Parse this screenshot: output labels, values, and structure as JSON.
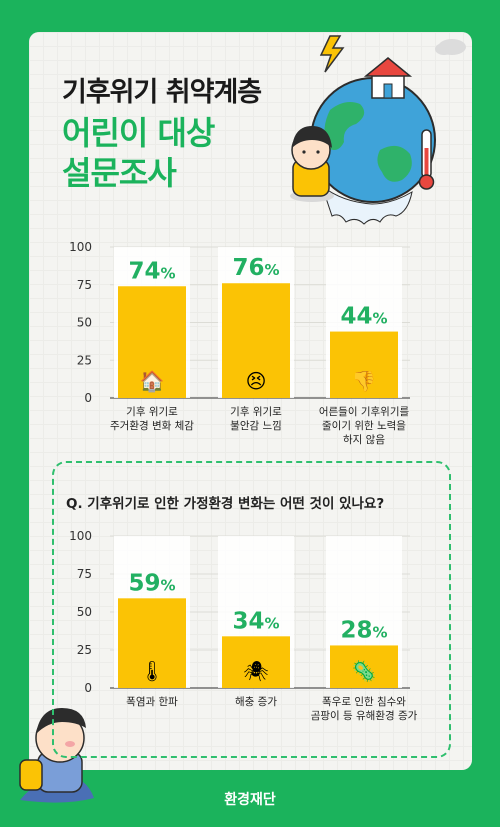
{
  "header": {
    "title_line1": "기후위기 취약계층",
    "title_line2": "어린이 대상",
    "title_line3": "설문조사"
  },
  "question": "Q. 기후위기로 인한 가정환경 변화는 어떤 것이 있나요?",
  "brand": "환경재단",
  "colors": {
    "background": "#1bb35c",
    "bar": "#fbc305",
    "accent": "#22b062",
    "card": "#f4f4f1"
  },
  "chart_data": [
    {
      "type": "bar",
      "categories": [
        [
          "기후 위기로",
          "주거환경 변화 체감"
        ],
        [
          "기후 위기로",
          "불안감 느낌"
        ],
        [
          "어른들이 기후위기를",
          "줄이기 위한 노력을",
          "하지 않음"
        ]
      ],
      "values": [
        74,
        76,
        44
      ],
      "value_suffix": "%",
      "ylim": [
        0,
        100
      ],
      "yticks": [
        0,
        25,
        50,
        75,
        100
      ],
      "icons": [
        "house-icon",
        "anxious-face-icon",
        "thumbs-down-icon"
      ]
    },
    {
      "type": "bar",
      "categories": [
        [
          "폭염과 한파"
        ],
        [
          "해충 증가"
        ],
        [
          "폭우로 인한 침수와",
          "곰팡이 등 유해환경 증가"
        ]
      ],
      "values": [
        59,
        34,
        28
      ],
      "value_suffix": "%",
      "ylim": [
        0,
        100
      ],
      "yticks": [
        0,
        25,
        50,
        75,
        100
      ],
      "icons": [
        "thermometer-icon",
        "bug-icon",
        "mold-icon"
      ]
    }
  ]
}
